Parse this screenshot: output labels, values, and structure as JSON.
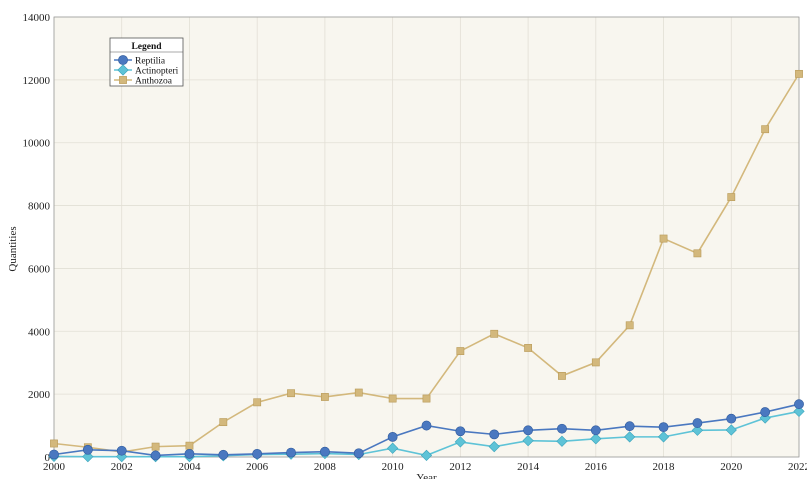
{
  "chart_data": {
    "type": "line",
    "xlabel": "Year",
    "ylabel": "Quantities",
    "x": [
      2000,
      2001,
      2002,
      2003,
      2004,
      2005,
      2006,
      2007,
      2008,
      2009,
      2010,
      2011,
      2012,
      2013,
      2014,
      2015,
      2016,
      2017,
      2018,
      2019,
      2020,
      2021,
      2022
    ],
    "xlim": [
      2000,
      2022
    ],
    "ylim": [
      0,
      14000
    ],
    "xticks": [
      2000,
      2002,
      2004,
      2006,
      2008,
      2010,
      2012,
      2014,
      2016,
      2018,
      2020,
      2022
    ],
    "yticks": [
      0,
      2000,
      4000,
      6000,
      8000,
      10000,
      12000,
      14000
    ],
    "grid": true,
    "legend": {
      "title": "Legend",
      "position": "top-left"
    },
    "background": "#f8f6ef",
    "grid_color": "#e2dfd5",
    "series": [
      {
        "name": "Reptilia",
        "color": "#4a78c0",
        "marker": "circle",
        "values": [
          80,
          230,
          200,
          50,
          100,
          70,
          100,
          140,
          170,
          120,
          640,
          1000,
          820,
          720,
          850,
          900,
          850,
          980,
          950,
          1080,
          1220,
          1430,
          1680
        ]
      },
      {
        "name": "Actinopteri",
        "color": "#5ec3d7",
        "marker": "diamond",
        "values": [
          20,
          10,
          10,
          10,
          10,
          40,
          80,
          90,
          110,
          80,
          280,
          50,
          480,
          330,
          520,
          500,
          580,
          640,
          640,
          850,
          860,
          1240,
          1450
        ]
      },
      {
        "name": "Anthozoa",
        "color": "#d3b87c",
        "marker": "square",
        "values": [
          430,
          310,
          160,
          330,
          360,
          1110,
          1740,
          2030,
          1910,
          2050,
          1860,
          1860,
          3370,
          3920,
          3470,
          2580,
          3010,
          4190,
          6950,
          6480,
          8270,
          10430,
          12190
        ]
      }
    ]
  }
}
